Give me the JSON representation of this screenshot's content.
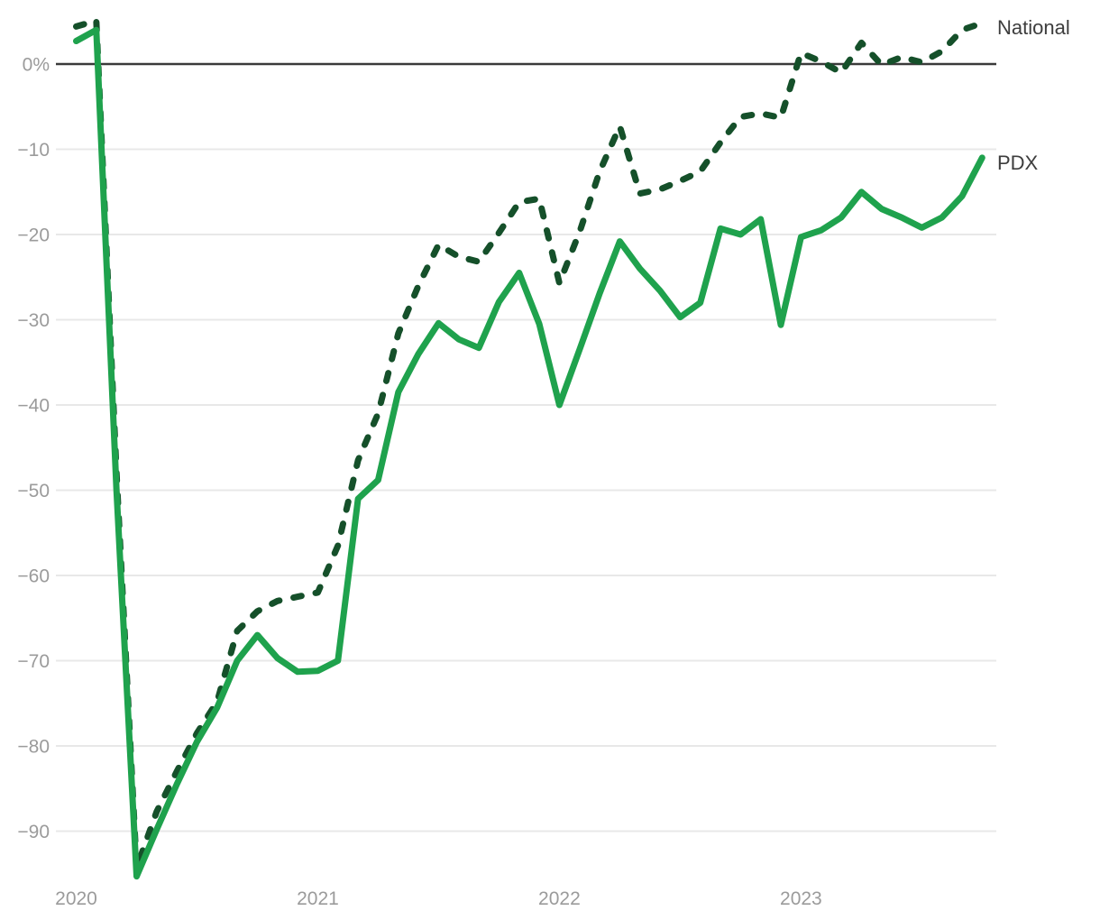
{
  "chart": {
    "background_color": "#ffffff",
    "gridline_color": "#e8e8e8",
    "zero_line_color": "#3a3a3a",
    "tick_text_color": "#9b9b9b",
    "series_label_color": "#3d3d3d"
  },
  "chart_data": {
    "type": "line",
    "title": "",
    "xlabel": "",
    "ylabel": "",
    "grid": "horizontal-only",
    "legend_position": "right-end-labels",
    "ylim": [
      -97,
      6
    ],
    "y_tick_step": 10,
    "x": [
      "2020-01",
      "2020-02",
      "2020-03",
      "2020-04",
      "2020-05",
      "2020-06",
      "2020-07",
      "2020-08",
      "2020-09",
      "2020-10",
      "2020-11",
      "2020-12",
      "2021-01",
      "2021-02",
      "2021-03",
      "2021-04",
      "2021-05",
      "2021-06",
      "2021-07",
      "2021-08",
      "2021-09",
      "2021-10",
      "2021-11",
      "2021-12",
      "2022-01",
      "2022-02",
      "2022-03",
      "2022-04",
      "2022-05",
      "2022-06",
      "2022-07",
      "2022-08",
      "2022-09",
      "2022-10",
      "2022-11",
      "2022-12",
      "2023-01",
      "2023-02",
      "2023-03",
      "2023-04",
      "2023-05",
      "2023-06",
      "2023-07",
      "2023-08",
      "2023-09",
      "2023-10"
    ],
    "series": [
      {
        "name": "National",
        "style": "dashed",
        "color": "#15502a",
        "values": [
          4.4,
          5.1,
          -48,
          -94.3,
          -87.7,
          -83,
          -78.5,
          -74.8,
          -66.5,
          -64.2,
          -63,
          -62.5,
          -62,
          -56.5,
          -46.5,
          -41,
          -31.6,
          -26,
          -21.2,
          -22.6,
          -23.2,
          -19.8,
          -16.2,
          -15.8,
          -25.7,
          -19.7,
          -12.6,
          -7.3,
          -15.2,
          -14.7,
          -13.7,
          -12.6,
          -9.2,
          -6.2,
          -5.8,
          -6.3,
          1.3,
          0.3,
          -1,
          2.5,
          -0.1,
          0.8,
          0.2,
          1.5,
          4,
          4.8
        ]
      },
      {
        "name": "PDX",
        "style": "solid",
        "color": "#1fa24d",
        "values": [
          2.7,
          4,
          -50,
          -95.3,
          -89.8,
          -84.5,
          -79.5,
          -75.5,
          -70,
          -67,
          -69.7,
          -71.3,
          -71.2,
          -70,
          -51,
          -48.8,
          -38.5,
          -34,
          -30.4,
          -32.3,
          -33.3,
          -27.9,
          -24.5,
          -30.5,
          -40,
          -33.5,
          -26.9,
          -20.8,
          -24,
          -26.6,
          -29.7,
          -28,
          -19.3,
          -20,
          -18.2,
          -30.6,
          -20.3,
          -19.5,
          -18,
          -15,
          -17,
          -18,
          -19.2,
          -18,
          -15.5,
          -11
        ]
      }
    ],
    "y_ticks": [
      {
        "label": "0%",
        "value": 0
      },
      {
        "label": "−10",
        "value": -10
      },
      {
        "label": "−20",
        "value": -20
      },
      {
        "label": "−30",
        "value": -30
      },
      {
        "label": "−40",
        "value": -40
      },
      {
        "label": "−50",
        "value": -50
      },
      {
        "label": "−60",
        "value": -60
      },
      {
        "label": "−70",
        "value": -70
      },
      {
        "label": "−80",
        "value": -80
      },
      {
        "label": "−90",
        "value": -90
      }
    ],
    "x_ticks": [
      {
        "label": "2020",
        "month_index": 0
      },
      {
        "label": "2021",
        "month_index": 12
      },
      {
        "label": "2022",
        "month_index": 24
      },
      {
        "label": "2023",
        "month_index": 36
      }
    ]
  }
}
